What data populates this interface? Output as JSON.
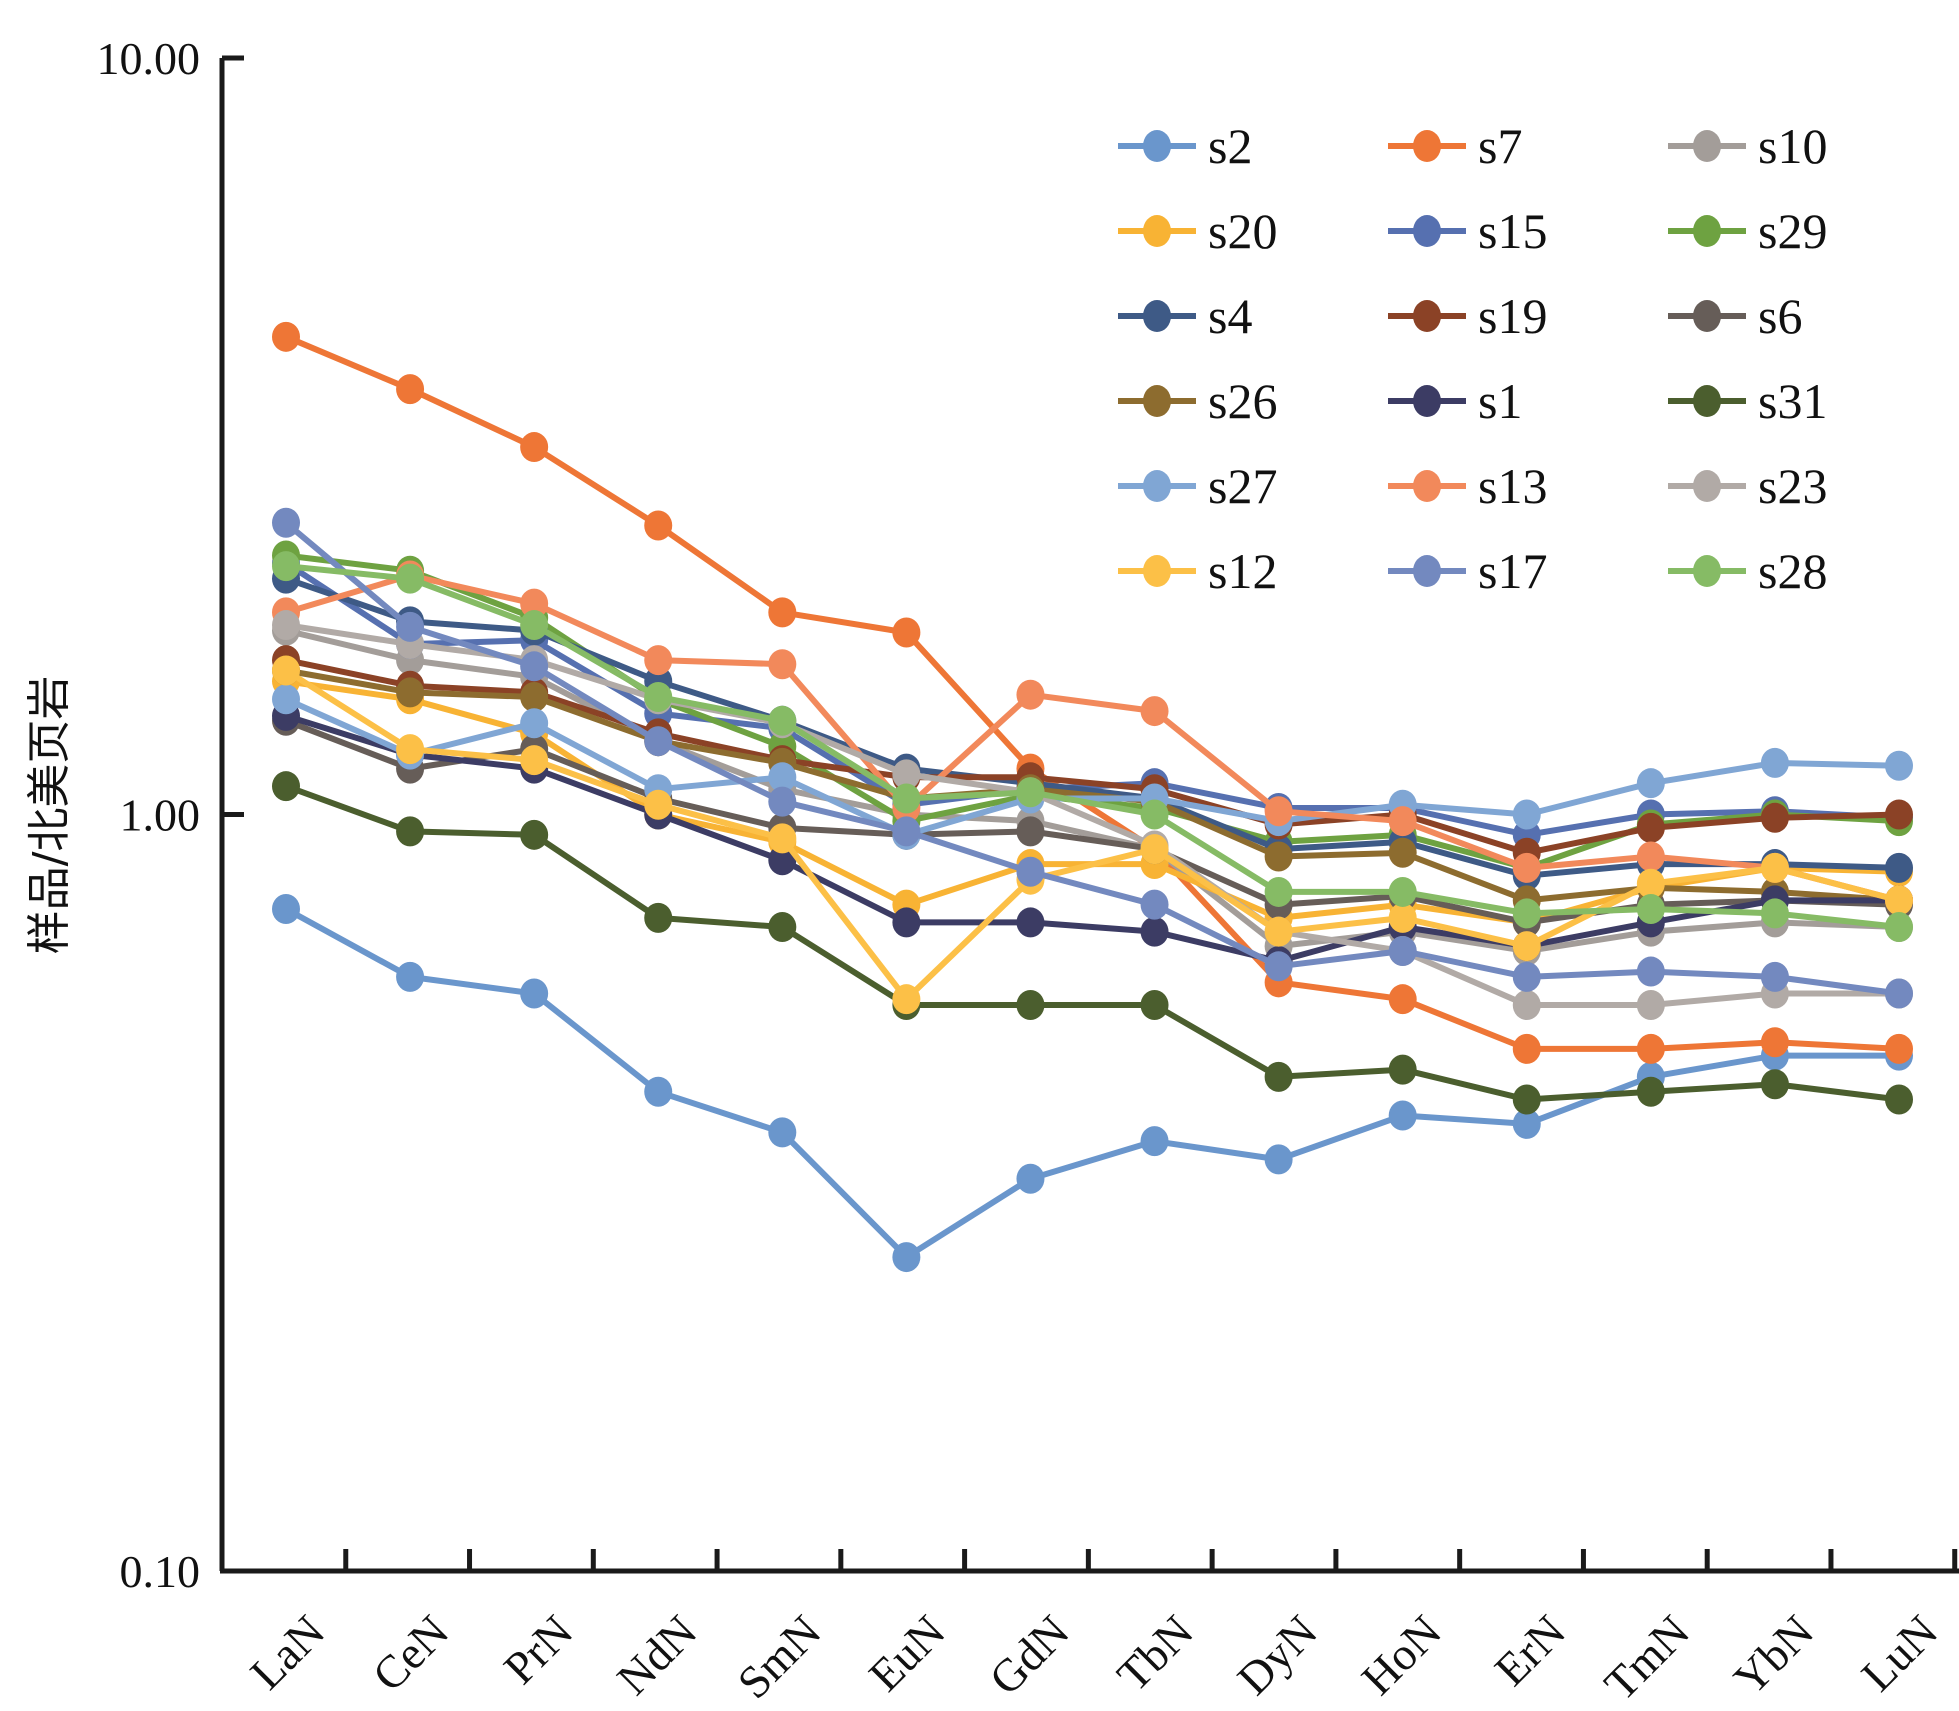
{
  "chart_data": {
    "type": "line",
    "title": "",
    "xlabel": "",
    "ylabel": "样品/北美页岩",
    "yscale": "log",
    "ylim": [
      0.1,
      10
    ],
    "yticks": [
      "10.00",
      "1.00",
      "0.10"
    ],
    "ytick_values": [
      10,
      1,
      0.1
    ],
    "grid": false,
    "legend_position": "top-right",
    "legend_columns": 3,
    "categories": [
      "LaN",
      "CeN",
      "PrN",
      "NdN",
      "SmN",
      "EuN",
      "GdN",
      "TbN",
      "DyN",
      "HoN",
      "ErN",
      "TmN",
      "YbN",
      "LuN"
    ],
    "series": [
      {
        "name": "s2",
        "color": "#6a96cc",
        "values": [
          0.75,
          0.61,
          0.58,
          0.43,
          0.38,
          0.26,
          0.33,
          0.37,
          0.35,
          0.4,
          0.39,
          0.45,
          0.48,
          0.48
        ]
      },
      {
        "name": "s7",
        "color": "#ee7636",
        "values": [
          4.28,
          3.65,
          3.06,
          2.41,
          1.85,
          1.74,
          1.15,
          0.9,
          0.6,
          0.57,
          0.49,
          0.49,
          0.5,
          0.49
        ]
      },
      {
        "name": "s10",
        "color": "#a39d99",
        "values": [
          1.75,
          1.6,
          1.52,
          1.25,
          1.08,
          1.0,
          0.98,
          0.9,
          0.67,
          0.7,
          0.66,
          0.7,
          0.72,
          0.71
        ]
      },
      {
        "name": "s20",
        "color": "#f8b334",
        "values": [
          1.5,
          1.42,
          1.28,
          1.0,
          0.92,
          0.76,
          0.86,
          0.86,
          0.73,
          0.76,
          0.72,
          0.8,
          0.85,
          0.84
        ]
      },
      {
        "name": "s15",
        "color": "#5670b0",
        "values": [
          2.15,
          1.68,
          1.7,
          1.36,
          1.3,
          1.03,
          1.08,
          1.1,
          1.02,
          1.02,
          0.94,
          1.0,
          1.01,
          0.99
        ]
      },
      {
        "name": "s29",
        "color": "#6ea241",
        "values": [
          2.2,
          2.1,
          1.82,
          1.42,
          1.23,
          0.98,
          1.06,
          1.02,
          0.92,
          0.94,
          0.85,
          0.97,
          1.0,
          0.98
        ]
      },
      {
        "name": "s4",
        "color": "#3e5a86",
        "values": [
          2.05,
          1.8,
          1.75,
          1.5,
          1.33,
          1.15,
          1.1,
          1.05,
          0.9,
          0.92,
          0.83,
          0.86,
          0.86,
          0.85
        ]
      },
      {
        "name": "s19",
        "color": "#8b4226",
        "values": [
          1.6,
          1.48,
          1.45,
          1.28,
          1.18,
          1.12,
          1.12,
          1.08,
          0.97,
          1.0,
          0.89,
          0.96,
          0.99,
          1.0
        ]
      },
      {
        "name": "s6",
        "color": "#665d58",
        "values": [
          1.33,
          1.15,
          1.22,
          1.05,
          0.96,
          0.94,
          0.95,
          0.9,
          0.76,
          0.78,
          0.72,
          0.76,
          0.77,
          0.76
        ]
      },
      {
        "name": "s26",
        "color": "#8d6c2f",
        "values": [
          1.55,
          1.45,
          1.43,
          1.25,
          1.17,
          1.05,
          1.08,
          1.04,
          0.88,
          0.89,
          0.77,
          0.8,
          0.79,
          0.77
        ]
      },
      {
        "name": "s1",
        "color": "#3c3c64",
        "values": [
          1.35,
          1.2,
          1.15,
          1.0,
          0.87,
          0.72,
          0.72,
          0.7,
          0.64,
          0.71,
          0.67,
          0.72,
          0.77,
          0.77
        ]
      },
      {
        "name": "s31",
        "color": "#4b5e2e",
        "values": [
          1.09,
          0.95,
          0.94,
          0.73,
          0.71,
          0.56,
          0.56,
          0.56,
          0.45,
          0.46,
          0.42,
          0.43,
          0.44,
          0.42
        ]
      },
      {
        "name": "s27",
        "color": "#80a6d4",
        "values": [
          1.42,
          1.2,
          1.32,
          1.08,
          1.12,
          0.94,
          1.05,
          1.05,
          0.98,
          1.03,
          1.0,
          1.1,
          1.17,
          1.16
        ]
      },
      {
        "name": "s13",
        "color": "#f2895b",
        "values": [
          1.85,
          2.07,
          1.9,
          1.6,
          1.58,
          1.02,
          1.44,
          1.37,
          1.01,
          0.98,
          0.85,
          0.88,
          0.85,
          0.77
        ]
      },
      {
        "name": "s23",
        "color": "#b1aaa6",
        "values": [
          1.78,
          1.68,
          1.6,
          1.42,
          1.32,
          1.13,
          1.07,
          0.91,
          0.7,
          0.66,
          0.56,
          0.56,
          0.58,
          0.58
        ]
      },
      {
        "name": "s12",
        "color": "#fcc047",
        "values": [
          1.55,
          1.22,
          1.18,
          1.03,
          0.93,
          0.57,
          0.82,
          0.9,
          0.7,
          0.73,
          0.67,
          0.81,
          0.85,
          0.77
        ]
      },
      {
        "name": "s17",
        "color": "#7389bf",
        "values": [
          2.43,
          1.77,
          1.57,
          1.25,
          1.04,
          0.95,
          0.84,
          0.76,
          0.63,
          0.66,
          0.61,
          0.62,
          0.61,
          0.58
        ]
      },
      {
        "name": "s28",
        "color": "#86bb65",
        "values": [
          2.13,
          2.05,
          1.78,
          1.43,
          1.33,
          1.05,
          1.07,
          1.0,
          0.79,
          0.79,
          0.74,
          0.75,
          0.74,
          0.71
        ]
      }
    ]
  }
}
